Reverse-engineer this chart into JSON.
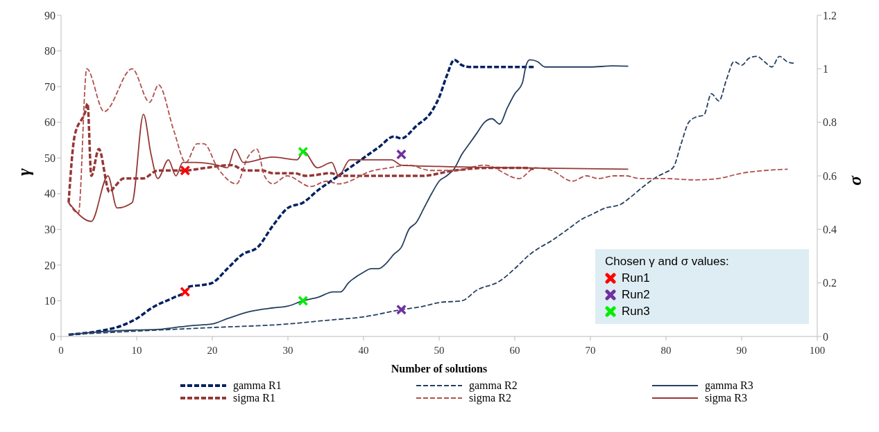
{
  "chart_data": {
    "type": "line",
    "xlabel": "Number of solutions",
    "ylabel": "γ",
    "y2label": "σ",
    "legend_title": "Chosen γ and σ values:",
    "legend": "bottom",
    "grid": false,
    "marker": "none",
    "xlim": [
      0,
      100
    ],
    "xticks": [
      0,
      10,
      20,
      30,
      40,
      50,
      60,
      70,
      80,
      90,
      100
    ],
    "ylim": [
      0,
      90
    ],
    "yticks": [
      0,
      10,
      20,
      30,
      40,
      50,
      60,
      70,
      80,
      90
    ],
    "y2lim": [
      0,
      1.2
    ],
    "y2ticks": [
      0,
      {
        "value": 0.2,
        "label": "0.2"
      },
      {
        "value": 0.4,
        "label": "0.4"
      },
      {
        "value": 0.6,
        "label": "0.6"
      },
      {
        "value": 0.8,
        "label": "0.8"
      },
      1,
      {
        "value": 1.2,
        "label": "1.2"
      }
    ],
    "series": [
      {
        "name": "gamma R1",
        "color": "#002060",
        "line_style": "dashed",
        "x": [
          1,
          5,
          8,
          10,
          12,
          15,
          16.4,
          17,
          19,
          20,
          22,
          24,
          26,
          28,
          30,
          32,
          34,
          36,
          38,
          40,
          42,
          44,
          45,
          47,
          49,
          50,
          51,
          52,
          53,
          54,
          56,
          58,
          60,
          62.5
        ],
        "values": [
          0.5,
          1.5,
          3,
          5,
          8,
          11,
          12.5,
          14,
          14.5,
          15,
          19,
          23,
          25,
          31,
          36,
          37.5,
          41,
          44,
          47,
          50,
          53,
          56,
          55.5,
          59,
          63,
          67,
          73,
          77.5,
          76,
          75.5,
          75.5,
          75.5,
          75.5,
          75.5
        ]
      },
      {
        "name": "gamma R2",
        "color": "#243f60",
        "line_style": "dashed",
        "x": [
          1,
          10,
          20,
          30,
          35,
          40,
          45,
          48,
          50,
          53,
          55,
          58,
          60,
          62,
          63,
          65,
          67,
          69,
          70,
          72,
          74,
          75,
          77,
          79,
          80,
          81,
          82,
          83,
          84,
          85,
          86,
          87,
          88,
          89,
          90,
          91,
          92,
          93,
          94,
          95,
          96,
          97
        ],
        "values": [
          0.5,
          1.5,
          2.5,
          3.5,
          4.5,
          5.5,
          7.5,
          8.5,
          9.5,
          10,
          13,
          15.5,
          19,
          23,
          24.5,
          27,
          30,
          33,
          34,
          36,
          37,
          38.5,
          42,
          45,
          46,
          47.5,
          54,
          60,
          61.5,
          62,
          68,
          66,
          72,
          77,
          76,
          78,
          78.5,
          77,
          75.5,
          78.5,
          77,
          76.5
        ]
      },
      {
        "name": "gamma R3",
        "color": "#243f60",
        "line_style": "solid",
        "x": [
          1,
          5,
          10,
          13,
          15,
          17,
          20,
          22,
          25,
          28,
          30,
          32,
          34,
          36,
          37,
          38,
          40,
          41,
          42,
          43,
          44,
          45,
          46,
          47,
          48,
          49,
          50,
          51,
          52,
          53,
          54,
          55,
          56,
          57,
          58,
          59,
          60,
          61,
          61.5,
          62,
          63,
          64,
          66,
          70,
          73,
          75
        ],
        "values": [
          0.5,
          1.3,
          1.8,
          2,
          2.5,
          3,
          3.5,
          5,
          7,
          8,
          8.5,
          10,
          11,
          12.5,
          12.5,
          15,
          18,
          19,
          19,
          20.5,
          23,
          25,
          30,
          32,
          36,
          40,
          43.5,
          45,
          47,
          51,
          54,
          57,
          60,
          61,
          59.5,
          64,
          68,
          71,
          76,
          77.5,
          77,
          75.5,
          75.5,
          75.5,
          75.8,
          75.7
        ]
      },
      {
        "name": "sigma R1",
        "color": "#953735",
        "line_style": "dashed",
        "axis": "y2",
        "x": [
          1,
          1.8,
          3.2,
          3.5,
          4,
          5,
          6.4,
          7.1,
          8.3,
          10.8,
          12.8,
          16.2,
          19.2,
          22.5,
          24.4,
          26.6,
          28,
          30.8,
          32.4,
          35.8,
          36.7,
          39.7,
          44.3,
          47.7,
          52,
          56.6,
          61.2,
          62.5
        ],
        "values": [
          0.5,
          0.75,
          0.84,
          0.87,
          0.6,
          0.7,
          0.54,
          0.56,
          0.59,
          0.59,
          0.62,
          0.62,
          0.63,
          0.64,
          0.62,
          0.62,
          0.61,
          0.61,
          0.6,
          0.61,
          0.6,
          0.6,
          0.6,
          0.6,
          0.62,
          0.63,
          0.63,
          0.625
        ]
      },
      {
        "name": "sigma R2",
        "color": "#b0504c",
        "line_style": "dashed",
        "axis": "y2",
        "x": [
          1,
          2.3,
          3.4,
          5.7,
          9.4,
          11.7,
          12.9,
          14.9,
          16.5,
          18,
          18.9,
          20.7,
          23.2,
          24.7,
          25.9,
          26.9,
          28,
          29.9,
          33,
          35.1,
          36.7,
          41.3,
          43.4,
          45.9,
          48.9,
          52,
          56,
          60.6,
          62.7,
          64.9,
          67.6,
          69.5,
          71,
          73.2,
          74.7,
          76.5,
          79.6,
          83.9,
          86.9,
          90,
          93.1,
          96.1
        ],
        "values": [
          0.5,
          0.46,
          1,
          0.84,
          1,
          0.875,
          0.94,
          0.77,
          0.65,
          0.72,
          0.72,
          0.63,
          0.57,
          0.67,
          0.7,
          0.6,
          0.57,
          0.6,
          0.56,
          0.58,
          0.57,
          0.62,
          0.63,
          0.64,
          0.62,
          0.62,
          0.64,
          0.59,
          0.63,
          0.62,
          0.58,
          0.6,
          0.59,
          0.6,
          0.6,
          0.59,
          0.59,
          0.585,
          0.59,
          0.61,
          0.62,
          0.625
        ]
      },
      {
        "name": "sigma R3",
        "color": "#953735",
        "line_style": "solid",
        "axis": "y2",
        "x": [
          1,
          4,
          6.2,
          7.4,
          9.4,
          10.9,
          11.9,
          12.8,
          14.2,
          15.2,
          16.1,
          17.7,
          20.7,
          22,
          23,
          24.1,
          28,
          31.2,
          32.1,
          33.9,
          35.8,
          36.7,
          38.2,
          43.7,
          45,
          50,
          60,
          75
        ],
        "values": [
          0.5,
          0.43,
          0.6,
          0.48,
          0.5,
          0.83,
          0.68,
          0.59,
          0.66,
          0.6,
          0.65,
          0.65,
          0.64,
          0.63,
          0.7,
          0.65,
          0.67,
          0.66,
          0.69,
          0.63,
          0.65,
          0.6,
          0.66,
          0.66,
          0.64,
          0.635,
          0.63,
          0.625
        ]
      },
      {
        "name": "Run1",
        "type": "scatter",
        "marker": "cross",
        "color": "#ff0000",
        "x": [
          16.4
        ],
        "values": [
          12.5
        ]
      },
      {
        "type": "scatter",
        "marker": "cross",
        "color": "#ff0000",
        "axis": "y2",
        "x": [
          16.4
        ],
        "values": [
          0.62
        ]
      },
      {
        "name": "Run2",
        "type": "scatter",
        "marker": "cross",
        "color": "#7030a0",
        "x": [
          45
        ],
        "values": [
          7.5
        ]
      },
      {
        "type": "scatter",
        "marker": "cross",
        "color": "#7030a0",
        "axis": "y2",
        "x": [
          45
        ],
        "values": [
          0.68
        ]
      },
      {
        "name": "Run3",
        "type": "scatter",
        "marker": "cross",
        "color": "#00ee00",
        "x": [
          32
        ],
        "values": [
          10
        ]
      },
      {
        "type": "scatter",
        "marker": "cross",
        "color": "#00ee00",
        "axis": "y2",
        "x": [
          32
        ],
        "values": [
          0.69
        ]
      }
    ]
  }
}
